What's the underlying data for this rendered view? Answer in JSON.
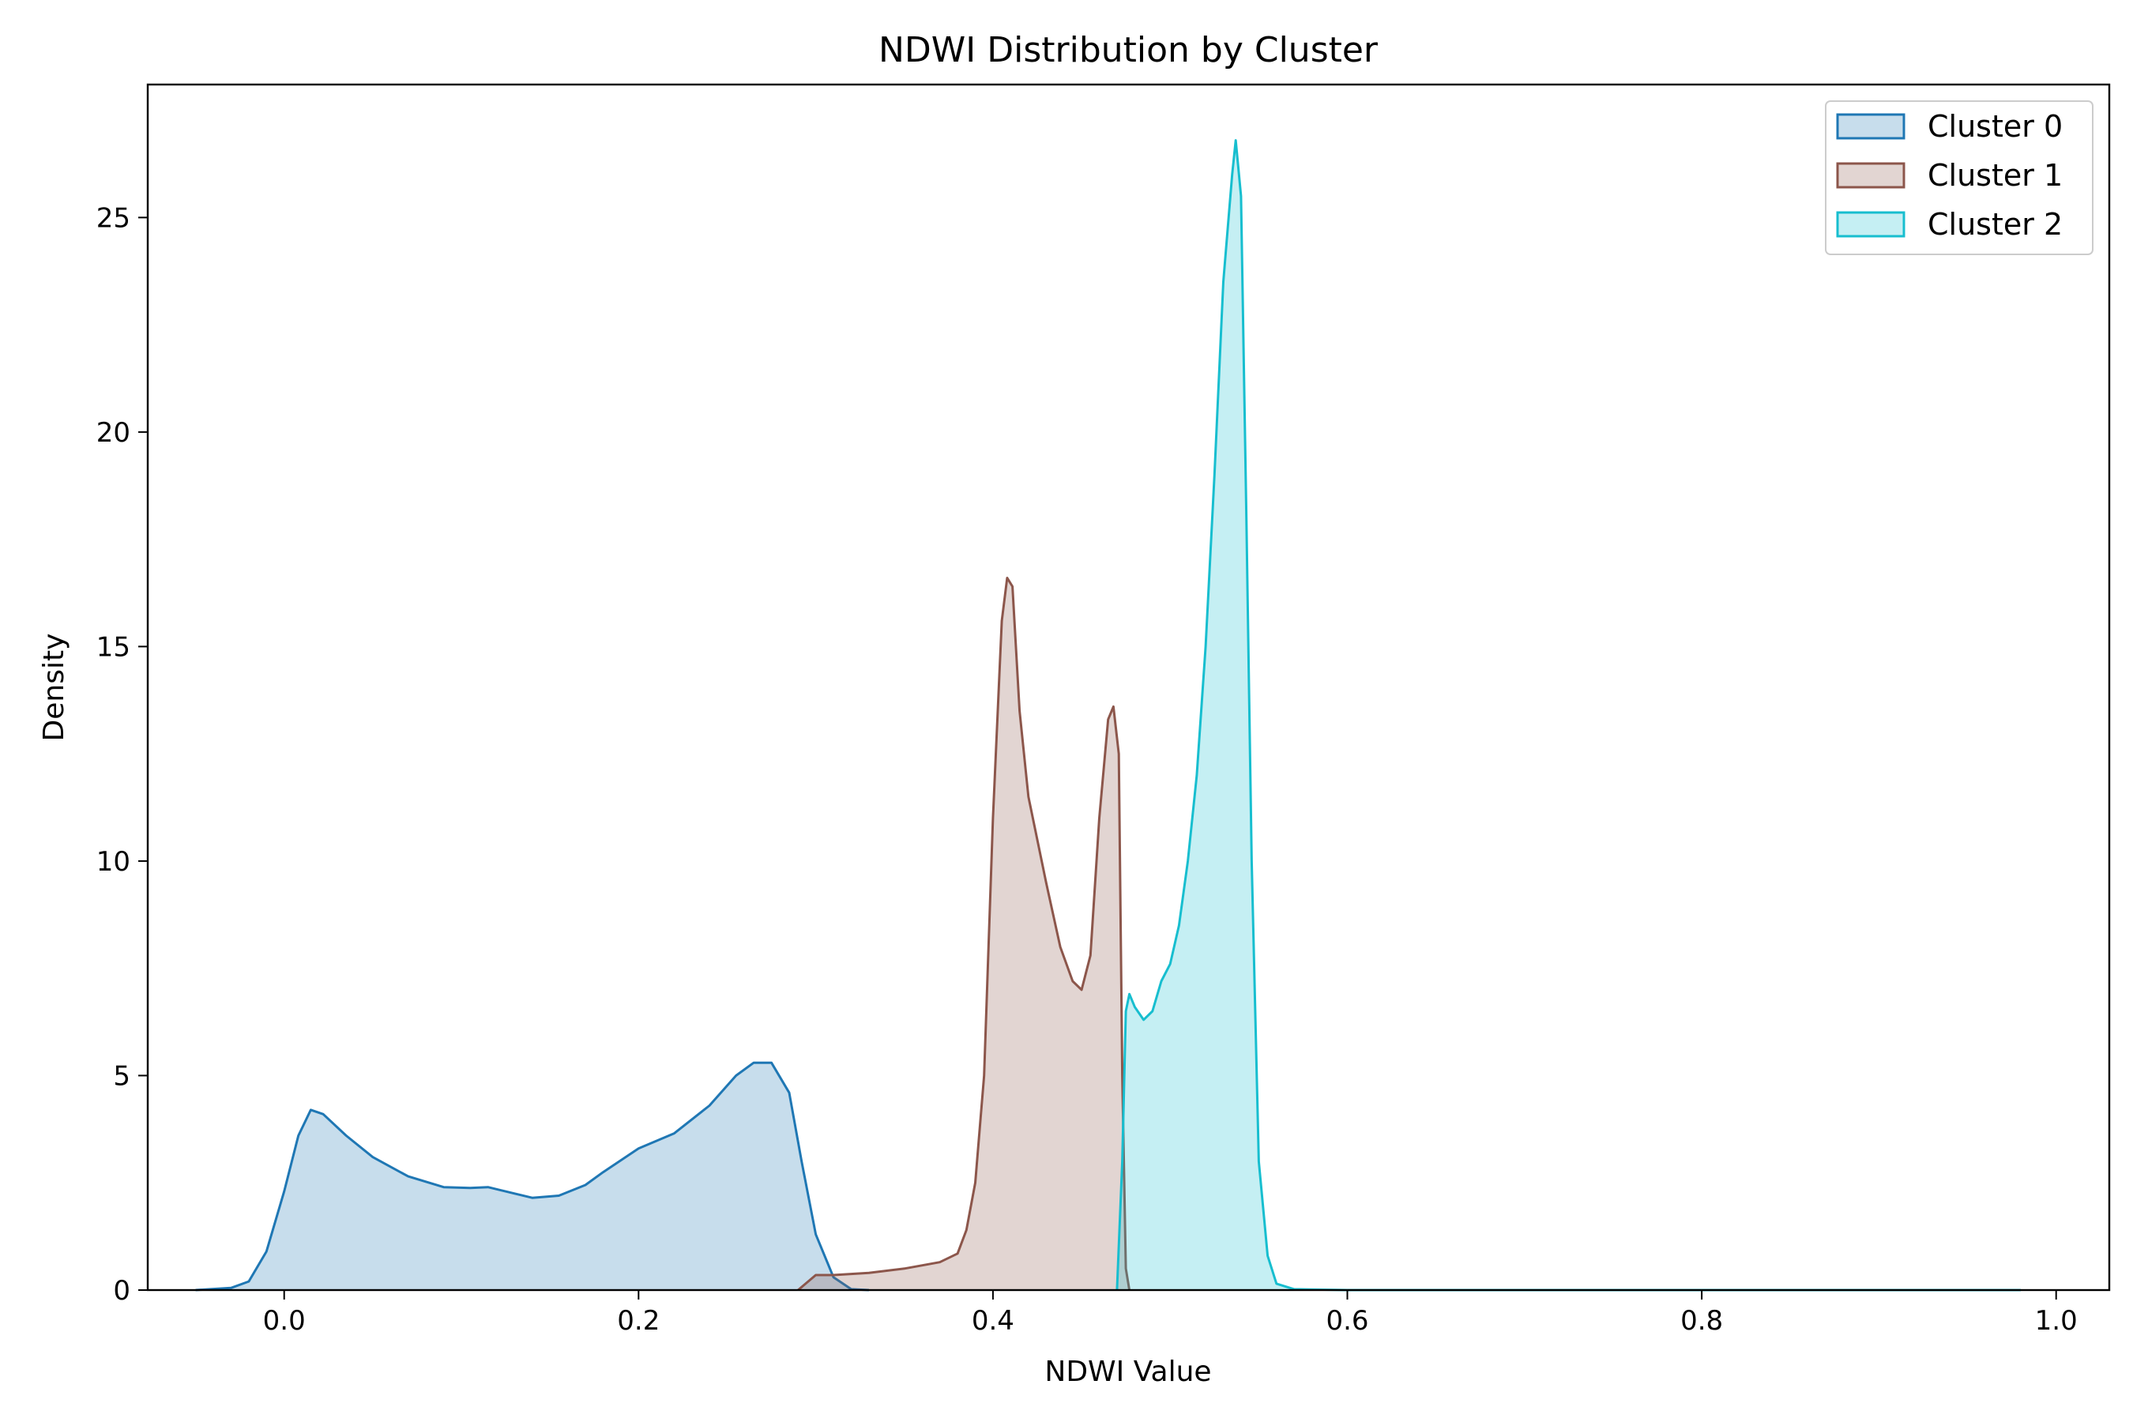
{
  "chart_data": {
    "type": "area",
    "title": "NDWI Distribution by Cluster",
    "xlabel": "NDWI Value",
    "ylabel": "Density",
    "xlim": [
      -0.077,
      1.03
    ],
    "ylim": [
      0,
      28.1
    ],
    "xticks": [
      "0.0",
      "0.2",
      "0.4",
      "0.6",
      "0.8",
      "1.0"
    ],
    "xtick_values": [
      0.0,
      0.2,
      0.4,
      0.6,
      0.8,
      1.0
    ],
    "yticks": [
      "0",
      "5",
      "10",
      "15",
      "20",
      "25"
    ],
    "ytick_values": [
      0,
      5,
      10,
      15,
      20,
      25
    ],
    "grid": false,
    "legend_position": "top-right",
    "series": [
      {
        "name": "Cluster 0",
        "color": "#1f77b4",
        "fill_opacity": 0.25,
        "points": [
          [
            -0.05,
            0
          ],
          [
            -0.03,
            0.05
          ],
          [
            -0.02,
            0.2
          ],
          [
            -0.01,
            0.9
          ],
          [
            0.0,
            2.3
          ],
          [
            0.008,
            3.6
          ],
          [
            0.015,
            4.2
          ],
          [
            0.022,
            4.1
          ],
          [
            0.035,
            3.6
          ],
          [
            0.05,
            3.1
          ],
          [
            0.07,
            2.65
          ],
          [
            0.09,
            2.4
          ],
          [
            0.105,
            2.38
          ],
          [
            0.115,
            2.4
          ],
          [
            0.13,
            2.25
          ],
          [
            0.14,
            2.15
          ],
          [
            0.155,
            2.2
          ],
          [
            0.17,
            2.45
          ],
          [
            0.18,
            2.75
          ],
          [
            0.2,
            3.3
          ],
          [
            0.22,
            3.65
          ],
          [
            0.24,
            4.3
          ],
          [
            0.255,
            5.0
          ],
          [
            0.265,
            5.3
          ],
          [
            0.275,
            5.3
          ],
          [
            0.285,
            4.6
          ],
          [
            0.292,
            3.0
          ],
          [
            0.3,
            1.3
          ],
          [
            0.31,
            0.3
          ],
          [
            0.32,
            0.02
          ],
          [
            0.33,
            0
          ]
        ]
      },
      {
        "name": "Cluster 1",
        "color": "#8c564b",
        "fill_opacity": 0.25,
        "points": [
          [
            0.29,
            0
          ],
          [
            0.3,
            0.35
          ],
          [
            0.31,
            0.35
          ],
          [
            0.33,
            0.4
          ],
          [
            0.35,
            0.5
          ],
          [
            0.37,
            0.65
          ],
          [
            0.38,
            0.85
          ],
          [
            0.385,
            1.4
          ],
          [
            0.39,
            2.5
          ],
          [
            0.395,
            5.0
          ],
          [
            0.4,
            11.0
          ],
          [
            0.405,
            15.6
          ],
          [
            0.408,
            16.6
          ],
          [
            0.411,
            16.4
          ],
          [
            0.415,
            13.5
          ],
          [
            0.42,
            11.5
          ],
          [
            0.43,
            9.5
          ],
          [
            0.438,
            8.0
          ],
          [
            0.445,
            7.2
          ],
          [
            0.45,
            7.0
          ],
          [
            0.455,
            7.8
          ],
          [
            0.46,
            11.0
          ],
          [
            0.465,
            13.3
          ],
          [
            0.468,
            13.6
          ],
          [
            0.471,
            12.5
          ],
          [
            0.473,
            5.0
          ],
          [
            0.475,
            0.5
          ],
          [
            0.477,
            0
          ]
        ]
      },
      {
        "name": "Cluster 2",
        "color": "#17becf",
        "fill_opacity": 0.25,
        "points": [
          [
            0.47,
            0
          ],
          [
            0.473,
            3.0
          ],
          [
            0.475,
            6.5
          ],
          [
            0.477,
            6.9
          ],
          [
            0.48,
            6.6
          ],
          [
            0.485,
            6.3
          ],
          [
            0.49,
            6.5
          ],
          [
            0.495,
            7.2
          ],
          [
            0.5,
            7.6
          ],
          [
            0.505,
            8.5
          ],
          [
            0.51,
            10.0
          ],
          [
            0.515,
            12.0
          ],
          [
            0.52,
            15.0
          ],
          [
            0.525,
            19.0
          ],
          [
            0.53,
            23.5
          ],
          [
            0.535,
            26.0
          ],
          [
            0.537,
            26.8
          ],
          [
            0.54,
            25.5
          ],
          [
            0.543,
            18.0
          ],
          [
            0.546,
            10.0
          ],
          [
            0.55,
            3.0
          ],
          [
            0.555,
            0.8
          ],
          [
            0.56,
            0.15
          ],
          [
            0.57,
            0.02
          ],
          [
            0.6,
            0
          ],
          [
            0.8,
            0
          ],
          [
            0.98,
            0
          ]
        ]
      }
    ]
  }
}
